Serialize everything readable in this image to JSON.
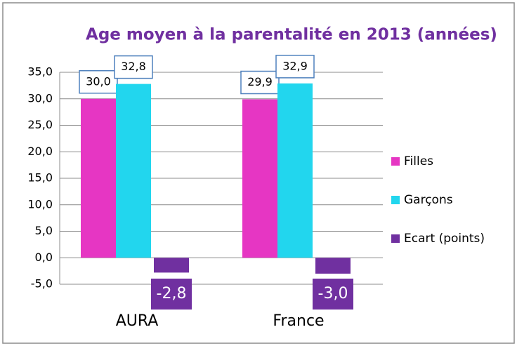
{
  "chart_data": {
    "type": "bar",
    "title": "Age moyen à la parentalité en 2013 (années)",
    "categories": [
      "AURA",
      "France"
    ],
    "series": [
      {
        "name": "Filles",
        "color": "#e636c3",
        "values": [
          30.0,
          29.9
        ],
        "value_labels": [
          "30,0",
          "29,9"
        ]
      },
      {
        "name": "Garçons",
        "color": "#22d6ee",
        "values": [
          32.8,
          32.9
        ],
        "value_labels": [
          "32,8",
          "32,9"
        ]
      },
      {
        "name": "Ecart (points)",
        "color": "#7030a0",
        "values": [
          -2.8,
          -3.0
        ],
        "value_labels": [
          "-2,8",
          "-3,0"
        ]
      }
    ],
    "ylim": [
      -5,
      35
    ],
    "yticks": [
      {
        "value": -5,
        "label": "-5,0"
      },
      {
        "value": 0,
        "label": "0,0"
      },
      {
        "value": 5,
        "label": "5,0"
      },
      {
        "value": 10,
        "label": "10,0"
      },
      {
        "value": 15,
        "label": "15,0"
      },
      {
        "value": 20,
        "label": "20,0"
      },
      {
        "value": 25,
        "label": "25,0"
      },
      {
        "value": 30,
        "label": "30,0"
      },
      {
        "value": 35,
        "label": "35,0"
      }
    ],
    "grid": true,
    "legend": "right"
  }
}
